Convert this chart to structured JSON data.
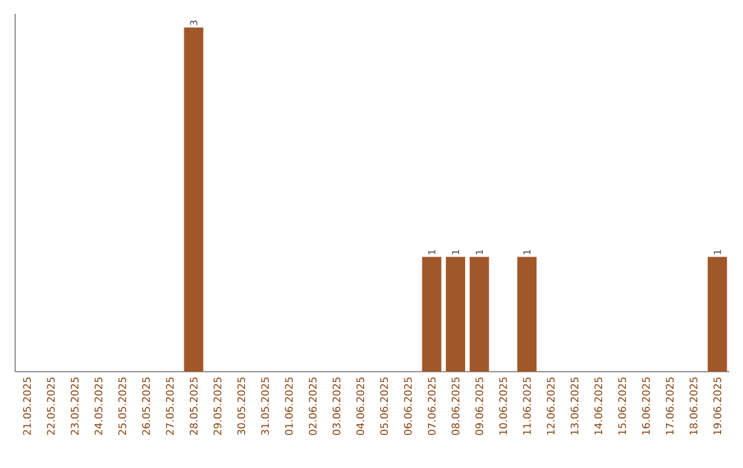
{
  "chart_data": {
    "type": "bar",
    "categories": [
      "21.05.2025",
      "22.05.2025",
      "23.05.2025",
      "24.05.2025",
      "25.05.2025",
      "26.05.2025",
      "27.05.2025",
      "28.05.2025",
      "29.05.2025",
      "30.05.2025",
      "31.05.2025",
      "01.06.2025",
      "02.06.2025",
      "03.06.2025",
      "04.06.2025",
      "05.06.2025",
      "06.06.2025",
      "07.06.2025",
      "08.06.2025",
      "09.06.2025",
      "10.06.2025",
      "11.06.2025",
      "12.06.2025",
      "13.06.2025",
      "14.06.2025",
      "15.06.2025",
      "16.06.2025",
      "17.06.2025",
      "18.06.2025",
      "19.06.2025"
    ],
    "values": [
      0,
      0,
      0,
      0,
      0,
      0,
      0,
      3,
      0,
      0,
      0,
      0,
      0,
      0,
      0,
      0,
      0,
      1,
      1,
      1,
      0,
      1,
      0,
      0,
      0,
      0,
      0,
      0,
      0,
      1
    ],
    "value_labels": [
      null,
      null,
      null,
      null,
      null,
      null,
      null,
      "3",
      null,
      null,
      null,
      null,
      null,
      null,
      null,
      null,
      null,
      "1",
      "1",
      "1",
      null,
      "1",
      null,
      null,
      null,
      null,
      null,
      null,
      null,
      "1"
    ],
    "color": "#a0572a",
    "tick_labels": "x"
  }
}
